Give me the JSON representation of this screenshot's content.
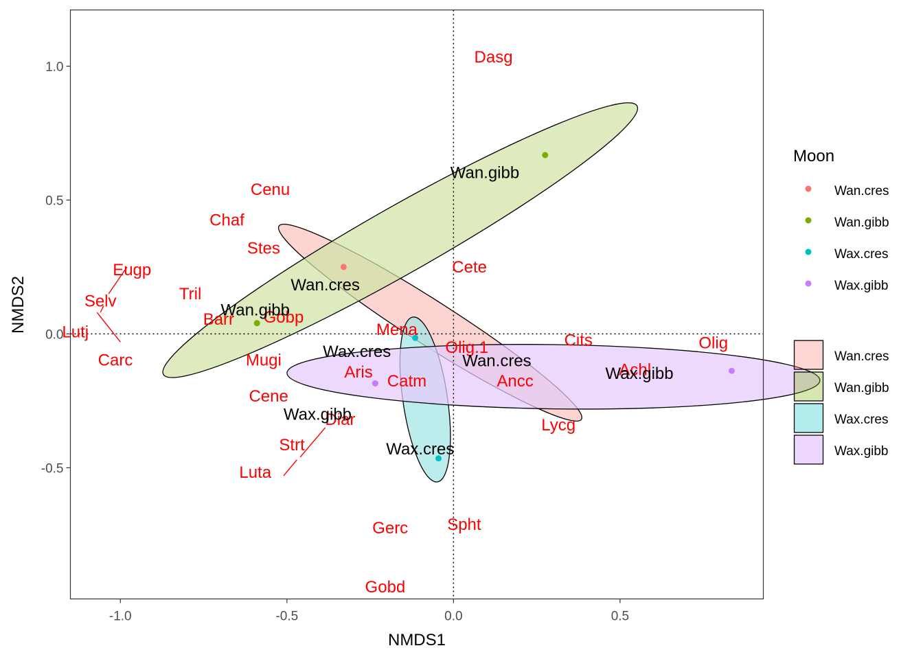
{
  "chart_data": {
    "type": "scatter",
    "xlabel": "NMDS1",
    "ylabel": "NMDS2",
    "xlim": [
      -1.15,
      0.93
    ],
    "ylim": [
      -0.99,
      1.21
    ],
    "x_ticks": [
      {
        "v": -1.0,
        "label": "-1.0"
      },
      {
        "v": -0.5,
        "label": "-0.5"
      },
      {
        "v": 0.0,
        "label": "0.0"
      },
      {
        "v": 0.5,
        "label": "0.5"
      }
    ],
    "y_ticks": [
      {
        "v": -0.5,
        "label": "-0.5"
      },
      {
        "v": 0.0,
        "label": "0.0"
      },
      {
        "v": 0.5,
        "label": "0.5"
      },
      {
        "v": 1.0,
        "label": "1.0"
      }
    ],
    "grid": false,
    "reference_lines": {
      "x": 0,
      "y": 0,
      "style": "dotted"
    },
    "legend": {
      "position": "right",
      "title": "Moon",
      "point_entries": [
        {
          "label": "Wan.cres",
          "color": "#f8766d"
        },
        {
          "label": "Wan.gibb",
          "color": "#7cae00"
        },
        {
          "label": "Wax.cres",
          "color": "#00bfc4"
        },
        {
          "label": "Wax.gibb",
          "color": "#c77cff"
        }
      ],
      "fill_entries": [
        {
          "label": "Wan.cres",
          "color": "#f8766d"
        },
        {
          "label": "Wan.gibb",
          "color": "#7cae00"
        },
        {
          "label": "Wax.cres",
          "color": "#00bfc4"
        },
        {
          "label": "Wax.gibb",
          "color": "#c77cff"
        }
      ]
    },
    "series": [
      {
        "name": "Wan.cres",
        "color": "#f8766d",
        "ellipse_fill": "#fbc4bf",
        "points": [
          {
            "x": -0.33,
            "y": 0.25
          }
        ],
        "ellipse": {
          "cx": -0.07,
          "cy": 0.042,
          "a": 0.58,
          "b": 0.075,
          "angle_deg": -38.5
        }
      },
      {
        "name": "Wan.gibb",
        "color": "#7cae00",
        "ellipse_fill": "#d0e3a5",
        "points": [
          {
            "x": -0.59,
            "y": 0.04
          },
          {
            "x": 0.275,
            "y": 0.668
          }
        ],
        "ellipse": {
          "cx": -0.16,
          "cy": 0.35,
          "a": 0.87,
          "b": 0.115,
          "angle_deg": 35.2
        }
      },
      {
        "name": "Wax.cres",
        "color": "#00bfc4",
        "ellipse_fill": "#a4e5e6",
        "points": [
          {
            "x": -0.115,
            "y": -0.015
          },
          {
            "x": -0.045,
            "y": -0.465
          }
        ],
        "ellipse": {
          "cx": -0.085,
          "cy": -0.245,
          "a": 0.31,
          "b": 0.067,
          "angle_deg": -83.2
        }
      },
      {
        "name": "Wax.gibb",
        "color": "#c77cff",
        "ellipse_fill": "#e4caf9",
        "points": [
          {
            "x": -0.235,
            "y": -0.185
          },
          {
            "x": 0.835,
            "y": -0.138
          }
        ],
        "ellipse": {
          "cx": 0.3,
          "cy": -0.16,
          "a": 0.8,
          "b": 0.12,
          "angle_deg": -1.0
        }
      }
    ],
    "group_labels": [
      {
        "text": "Wan.cres",
        "x": -0.385,
        "y": 0.183
      },
      {
        "text": "Wan.cres",
        "x": 0.13,
        "y": -0.1
      },
      {
        "text": "Wan.gibb",
        "x": -0.595,
        "y": 0.09
      },
      {
        "text": "Wan.gibb",
        "x": 0.094,
        "y": 0.602
      },
      {
        "text": "Wax.cres",
        "x": -0.29,
        "y": -0.066
      },
      {
        "text": "Wax.cres",
        "x": -0.1,
        "y": -0.43
      },
      {
        "text": "Wax.gibb",
        "x": -0.408,
        "y": -0.3
      },
      {
        "text": "Wax.gibb",
        "x": 0.558,
        "y": -0.148
      }
    ],
    "species": [
      {
        "text": "Dasg",
        "x": 0.12,
        "y": 1.035
      },
      {
        "text": "Cenu",
        "x": -0.55,
        "y": 0.54
      },
      {
        "text": "Chaf",
        "x": -0.68,
        "y": 0.425
      },
      {
        "text": "Stes",
        "x": -0.57,
        "y": 0.32
      },
      {
        "text": "Cete",
        "x": 0.048,
        "y": 0.25
      },
      {
        "text": "Eugp",
        "x": -0.965,
        "y": 0.24
      },
      {
        "text": "Tril",
        "x": -0.79,
        "y": 0.15
      },
      {
        "text": "Selv",
        "x": -1.06,
        "y": 0.123
      },
      {
        "text": "Barr",
        "x": -0.705,
        "y": 0.055
      },
      {
        "text": "Gobp",
        "x": -0.51,
        "y": 0.062
      },
      {
        "text": "Lutj",
        "x": -1.135,
        "y": 0.007
      },
      {
        "text": "Mena",
        "x": -0.17,
        "y": 0.017
      },
      {
        "text": "Cits",
        "x": 0.375,
        "y": -0.023
      },
      {
        "text": "Olig",
        "x": 0.78,
        "y": -0.033
      },
      {
        "text": "Olig.1",
        "x": 0.04,
        "y": -0.05
      },
      {
        "text": "Carc",
        "x": -1.015,
        "y": -0.098
      },
      {
        "text": "Mugi",
        "x": -0.57,
        "y": -0.098
      },
      {
        "text": "Achl",
        "x": 0.545,
        "y": -0.133
      },
      {
        "text": "Aris",
        "x": -0.285,
        "y": -0.143
      },
      {
        "text": "Catm",
        "x": -0.14,
        "y": -0.176
      },
      {
        "text": "Ancc",
        "x": 0.185,
        "y": -0.176
      },
      {
        "text": "Cene",
        "x": -0.555,
        "y": -0.232
      },
      {
        "text": "Diar",
        "x": -0.34,
        "y": -0.32
      },
      {
        "text": "Lycg",
        "x": 0.315,
        "y": -0.34
      },
      {
        "text": "Strt",
        "x": -0.485,
        "y": -0.414
      },
      {
        "text": "Luta",
        "x": -0.595,
        "y": -0.517
      },
      {
        "text": "Gerc",
        "x": -0.19,
        "y": -0.725
      },
      {
        "text": "Spht",
        "x": 0.032,
        "y": -0.712
      },
      {
        "text": "Gobd",
        "x": -0.205,
        "y": -0.945
      }
    ],
    "connector_segments": [
      {
        "x1": -0.98,
        "y1": 0.25,
        "x2": -1.035,
        "y2": 0.15
      },
      {
        "x1": -1.05,
        "y1": 0.105,
        "x2": -1.06,
        "y2": 0.08
      },
      {
        "x1": -1.07,
        "y1": 0.08,
        "x2": -1.0,
        "y2": -0.03
      },
      {
        "x1": -0.385,
        "y1": -0.35,
        "x2": -0.46,
        "y2": -0.46
      },
      {
        "x1": -0.47,
        "y1": -0.47,
        "x2": -0.51,
        "y2": -0.53
      }
    ]
  }
}
